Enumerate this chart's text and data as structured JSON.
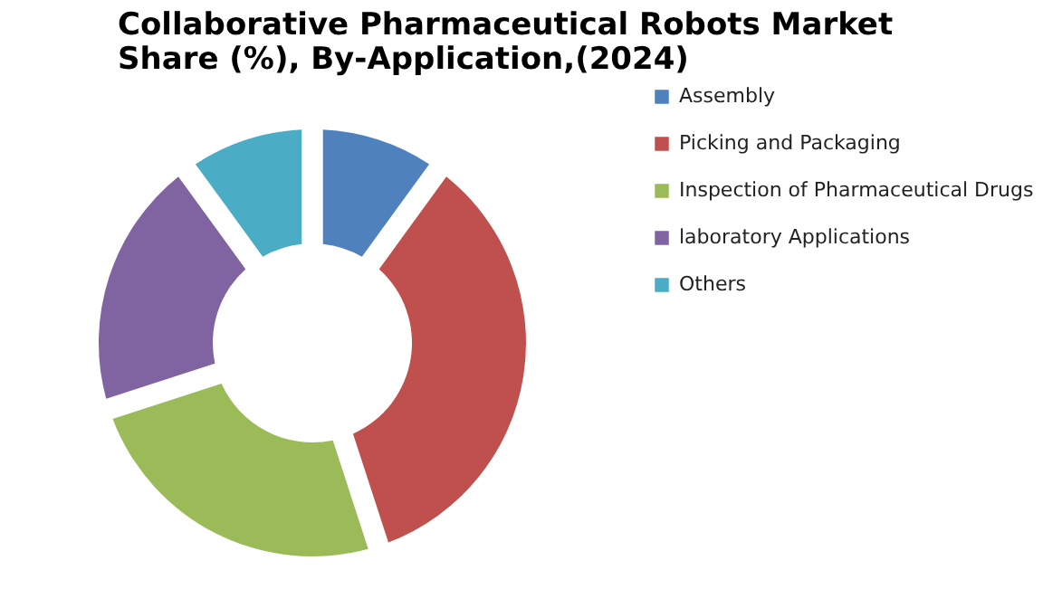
{
  "chart_data": {
    "type": "donut",
    "title": "Collaborative Pharmaceutical Robots Market Share (%), By-Application,(2024)",
    "categories": [
      "Assembly",
      "Picking and Packaging",
      "Inspection of Pharmaceutical Drugs",
      "laboratory Applications",
      "Others"
    ],
    "values": [
      10,
      35,
      25,
      20,
      10
    ],
    "colors": [
      "#4f81bd",
      "#c0504d",
      "#9bbb59",
      "#8064a2",
      "#4bacc6"
    ],
    "legend": "right"
  }
}
